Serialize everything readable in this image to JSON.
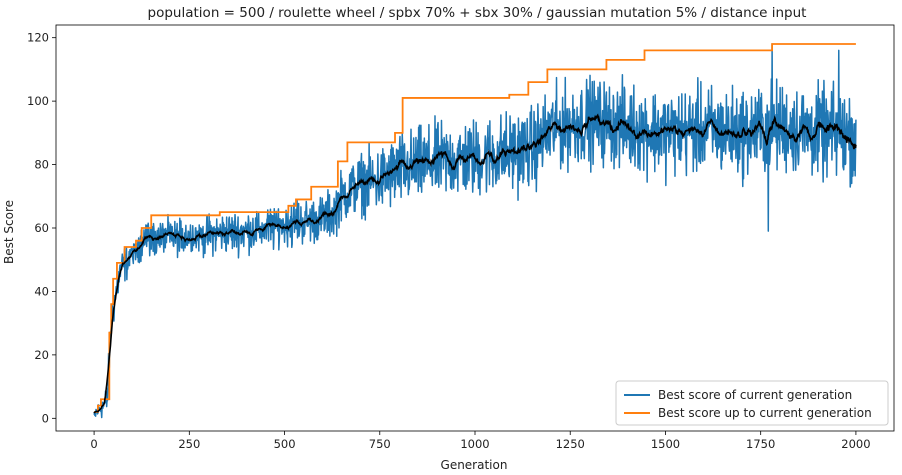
{
  "chart_data": {
    "type": "line",
    "title": "population = 500 / roulette wheel / spbx 70% + sbx 30% / gaussian mutation 5% / distance input",
    "xlabel": "Generation",
    "ylabel": "Best Score",
    "xlim": [
      -100,
      2100
    ],
    "ylim": [
      -4,
      124
    ],
    "x_ticks": [
      0,
      250,
      500,
      750,
      1000,
      1250,
      1500,
      1750,
      2000
    ],
    "y_ticks": [
      0,
      20,
      40,
      60,
      80,
      100,
      120
    ],
    "grid": false,
    "legend_position": "lower-right",
    "series": [
      {
        "name": "Best score of current generation",
        "color": "#1f77b4",
        "role": "noisy",
        "generations": [
          0,
          2000
        ],
        "trend_anchors": [
          [
            0,
            1
          ],
          [
            15,
            3
          ],
          [
            25,
            4
          ],
          [
            35,
            6
          ],
          [
            40,
            20
          ],
          [
            45,
            30
          ],
          [
            55,
            38
          ],
          [
            70,
            47
          ],
          [
            90,
            50
          ],
          [
            110,
            54
          ],
          [
            130,
            57
          ],
          [
            150,
            57
          ],
          [
            200,
            57
          ],
          [
            300,
            58
          ],
          [
            400,
            59
          ],
          [
            500,
            61
          ],
          [
            550,
            62
          ],
          [
            600,
            63
          ],
          [
            630,
            65
          ],
          [
            650,
            70
          ],
          [
            700,
            74
          ],
          [
            750,
            75
          ],
          [
            800,
            78
          ],
          [
            900,
            81
          ],
          [
            1000,
            82
          ],
          [
            1100,
            84
          ],
          [
            1150,
            85
          ],
          [
            1200,
            91
          ],
          [
            1300,
            94
          ],
          [
            1400,
            92
          ],
          [
            1500,
            90
          ],
          [
            1600,
            91
          ],
          [
            1700,
            90
          ],
          [
            1800,
            92
          ],
          [
            1900,
            90
          ],
          [
            2000,
            89
          ]
        ],
        "noise_amplitude": [
          [
            0,
            1
          ],
          [
            40,
            4
          ],
          [
            120,
            4
          ],
          [
            600,
            5
          ],
          [
            800,
            8
          ],
          [
            1200,
            9
          ],
          [
            2000,
            10
          ]
        ],
        "max_value": 118,
        "min_value_late": 59
      },
      {
        "name": "Best score up to current generation",
        "color": "#ff7f0e",
        "role": "step",
        "steps": [
          [
            0,
            2
          ],
          [
            10,
            4
          ],
          [
            18,
            6
          ],
          [
            40,
            27
          ],
          [
            45,
            36
          ],
          [
            50,
            44
          ],
          [
            60,
            49
          ],
          [
            80,
            54
          ],
          [
            110,
            56
          ],
          [
            125,
            60
          ],
          [
            150,
            64
          ],
          [
            330,
            65
          ],
          [
            510,
            67
          ],
          [
            530,
            69
          ],
          [
            570,
            73
          ],
          [
            640,
            81
          ],
          [
            665,
            87
          ],
          [
            790,
            90
          ],
          [
            810,
            101
          ],
          [
            1090,
            102
          ],
          [
            1140,
            106
          ],
          [
            1190,
            110
          ],
          [
            1345,
            113
          ],
          [
            1445,
            116
          ],
          [
            1780,
            118
          ],
          [
            2000,
            118
          ]
        ]
      },
      {
        "name": "",
        "color": "#000000",
        "role": "moving-average",
        "window": 20
      }
    ]
  }
}
